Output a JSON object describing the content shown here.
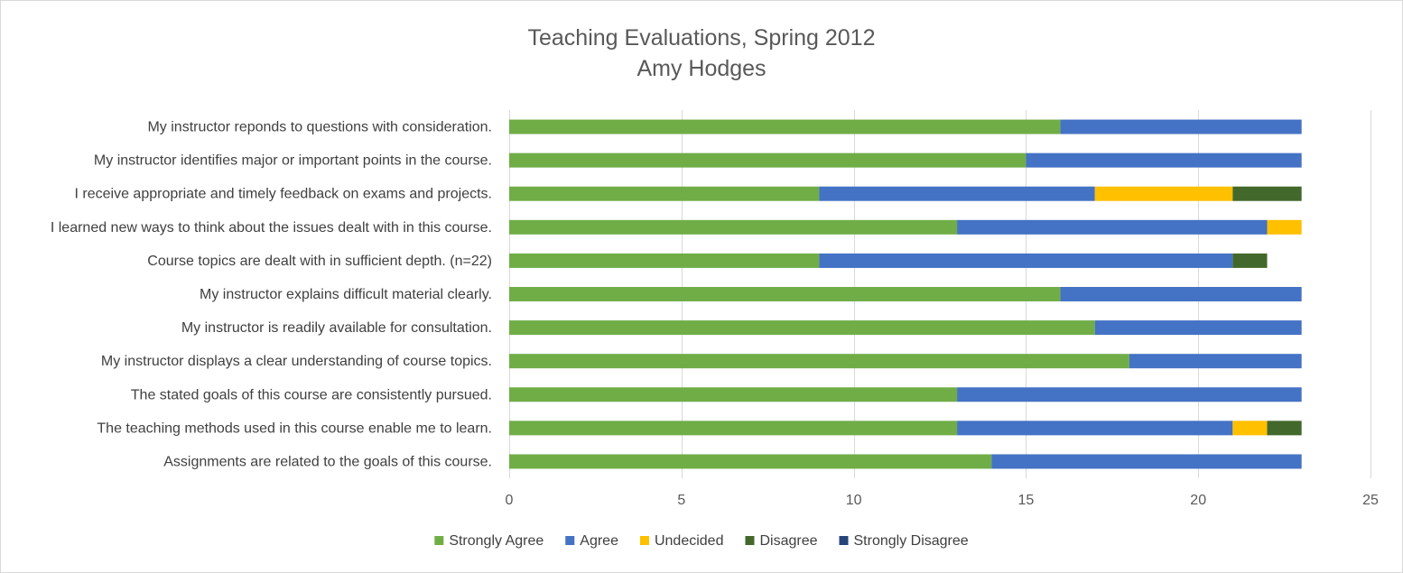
{
  "chart_data": {
    "type": "bar",
    "orientation": "horizontal",
    "stacked": true,
    "title": "Teaching Evaluations, Spring 2012",
    "subtitle": "Amy Hodges",
    "xlim": [
      0,
      25
    ],
    "xticks": [
      0,
      5,
      10,
      15,
      20,
      25
    ],
    "grid": true,
    "legend_position": "bottom",
    "categories": [
      "My instructor reponds to questions with consideration.",
      "My instructor identifies major or important points in the course.",
      "I receive appropriate and timely feedback on exams and projects.",
      "I learned new ways to think about the issues dealt with in this course.",
      "Course topics are dealt with in sufficient depth. (n=22)",
      "My instructor explains difficult material clearly.",
      "My instructor is readily available for consultation.",
      "My instructor displays a clear understanding of course topics.",
      "The stated goals of this course are consistently pursued.",
      "The teaching methods used in this course enable me to learn.",
      "Assignments are related to the goals of this course."
    ],
    "series": [
      {
        "name": "Strongly Agree",
        "color": "#70ad47",
        "values": [
          16,
          15,
          9,
          13,
          9,
          16,
          17,
          18,
          13,
          13,
          14
        ]
      },
      {
        "name": "Agree",
        "color": "#4472c4",
        "values": [
          7,
          8,
          8,
          9,
          12,
          7,
          6,
          5,
          10,
          8,
          9
        ]
      },
      {
        "name": "Undecided",
        "color": "#ffc000",
        "values": [
          0,
          0,
          4,
          1,
          0,
          0,
          0,
          0,
          0,
          1,
          0
        ]
      },
      {
        "name": "Disagree",
        "color": "#43682b",
        "values": [
          0,
          0,
          2,
          0,
          1,
          0,
          0,
          0,
          0,
          1,
          0
        ]
      },
      {
        "name": "Strongly Disagree",
        "color": "#264478",
        "values": [
          0,
          0,
          0,
          0,
          0,
          0,
          0,
          0,
          0,
          0,
          0
        ]
      }
    ]
  }
}
